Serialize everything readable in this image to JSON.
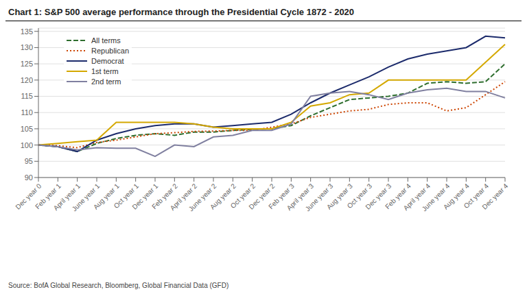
{
  "chart_data": {
    "type": "line",
    "title": "Chart 1: S&P 500 average performance through the Presidential Cycle 1872 - 2020",
    "annotations": [
      "Source: BofA Global Research, Bloomberg, Global Financial Data (GFD)"
    ],
    "categories": [
      "Dec year 0",
      "Feb year 1",
      "April year 1",
      "June year 1",
      "Aug year 1",
      "Oct year 1",
      "Dec year 1",
      "Feb year 2",
      "April year 2",
      "June year 2",
      "Aug year 2",
      "Oct year 2",
      "Dec year 2",
      "Feb year 3",
      "April year 3",
      "June year 3",
      "Aug year 3",
      "Oct year 3",
      "Dec year 3",
      "Feb year 4",
      "April year 4",
      "June year 4",
      "Aug year 4",
      "Oct year 4",
      "Dec year 4"
    ],
    "series": [
      {
        "name": "All terms",
        "color": "#2e6e2e",
        "line_style": "dashed",
        "values": [
          100.0,
          99.5,
          98.0,
          100.5,
          102.0,
          103.0,
          103.5,
          103.0,
          104.0,
          104.0,
          104.5,
          104.8,
          105.0,
          106.0,
          109.0,
          111.5,
          114.0,
          114.5,
          115.0,
          116.0,
          119.0,
          119.5,
          119.0,
          119.5,
          125.0
        ]
      },
      {
        "name": "Republican",
        "color": "#cc4400",
        "line_style": "dotted",
        "values": [
          100.0,
          99.8,
          99.2,
          100.8,
          101.5,
          102.5,
          103.5,
          103.8,
          104.2,
          104.3,
          104.5,
          104.5,
          105.5,
          106.5,
          108.5,
          109.5,
          110.5,
          111.0,
          112.5,
          113.0,
          113.0,
          110.5,
          111.5,
          115.5,
          119.5
        ]
      },
      {
        "name": "Democrat",
        "color": "#1b2a6b",
        "line_style": "solid",
        "values": [
          100.0,
          99.5,
          98.0,
          101.5,
          103.5,
          105.0,
          106.0,
          106.5,
          106.5,
          105.5,
          106.0,
          106.5,
          107.0,
          109.5,
          113.0,
          116.0,
          118.5,
          121.0,
          124.0,
          126.5,
          128.0,
          129.0,
          130.0,
          133.5,
          133.0
        ]
      },
      {
        "name": "1st term",
        "color": "#d4a800",
        "line_style": "solid",
        "values": [
          100.0,
          100.5,
          101.0,
          101.5,
          107.0,
          107.0,
          107.0,
          107.0,
          106.5,
          105.5,
          105.0,
          105.0,
          105.0,
          107.0,
          112.0,
          113.0,
          115.5,
          116.0,
          120.0,
          120.0,
          120.0,
          120.0,
          120.0,
          125.5,
          131.0
        ]
      },
      {
        "name": "2nd term",
        "color": "#8080a0",
        "line_style": "solid",
        "values": [
          100.0,
          99.5,
          98.5,
          99.2,
          99.0,
          99.0,
          96.5,
          100.0,
          99.5,
          102.5,
          103.0,
          104.5,
          104.5,
          106.5,
          115.0,
          116.0,
          116.5,
          115.5,
          114.0,
          116.0,
          117.0,
          117.5,
          116.5,
          116.5,
          114.5
        ]
      }
    ],
    "ylim": [
      90,
      136
    ],
    "yticks": [
      90,
      95,
      100,
      105,
      110,
      115,
      120,
      125,
      130,
      135
    ],
    "grid": true,
    "legend": "upper left"
  }
}
